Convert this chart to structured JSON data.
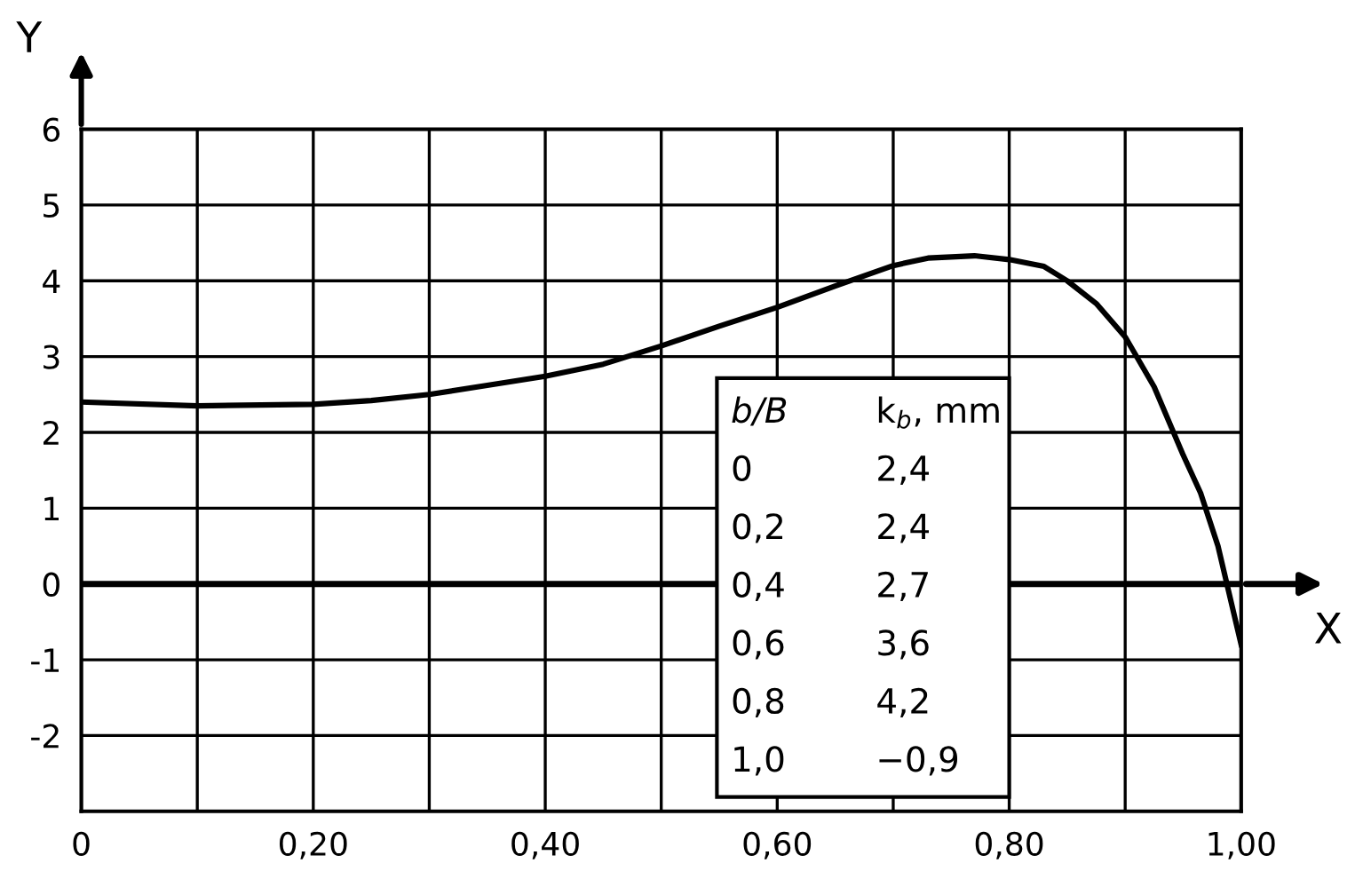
{
  "chart_data": {
    "type": "line",
    "xlabel": "X",
    "ylabel": "Y",
    "x": [
      0,
      0.1,
      0.2,
      0.25,
      0.3,
      0.35,
      0.4,
      0.45,
      0.5,
      0.55,
      0.6,
      0.65,
      0.7,
      0.73,
      0.77,
      0.8,
      0.83,
      0.85,
      0.875,
      0.9,
      0.925,
      0.95,
      0.965,
      0.98,
      1.0
    ],
    "series": [
      {
        "color": "#000000",
        "values": [
          2.4,
          2.35,
          2.37,
          2.42,
          2.5,
          2.62,
          2.74,
          2.9,
          3.14,
          3.4,
          3.65,
          3.93,
          4.2,
          4.3,
          4.33,
          4.28,
          4.19,
          4.0,
          3.7,
          3.26,
          2.6,
          1.7,
          1.2,
          0.5,
          -0.8
        ]
      }
    ],
    "xlim": [
      0,
      1.0
    ],
    "ylim": [
      -3,
      6
    ],
    "xticks": [
      {
        "value": 0,
        "label": "0"
      },
      {
        "value": 0.1,
        "label": null
      },
      {
        "value": 0.2,
        "label": "0,20"
      },
      {
        "value": 0.3,
        "label": null
      },
      {
        "value": 0.4,
        "label": "0,40"
      },
      {
        "value": 0.5,
        "label": null
      },
      {
        "value": 0.6,
        "label": "0,60"
      },
      {
        "value": 0.7,
        "label": null
      },
      {
        "value": 0.8,
        "label": "0,80"
      },
      {
        "value": 0.9,
        "label": null
      },
      {
        "value": 1.0,
        "label": "1,00"
      }
    ],
    "yticks": [
      {
        "value": -3,
        "label": null
      },
      -2,
      -1,
      0,
      1,
      2,
      3,
      4,
      5,
      6
    ],
    "grid": true,
    "marker": "none",
    "line_style": "solid",
    "legend": false,
    "ref_lines": [
      {
        "axis": "y",
        "value": 0,
        "color": "#000000"
      }
    ],
    "annotations": [
      "b/B",
      "k$_{b}$, mm",
      "0",
      "2,4",
      "0,2",
      "2,4",
      "0,4",
      "2,7",
      "0,6",
      "3,6",
      "0,8",
      "4,2",
      "1,0",
      "−0,9"
    ]
  }
}
